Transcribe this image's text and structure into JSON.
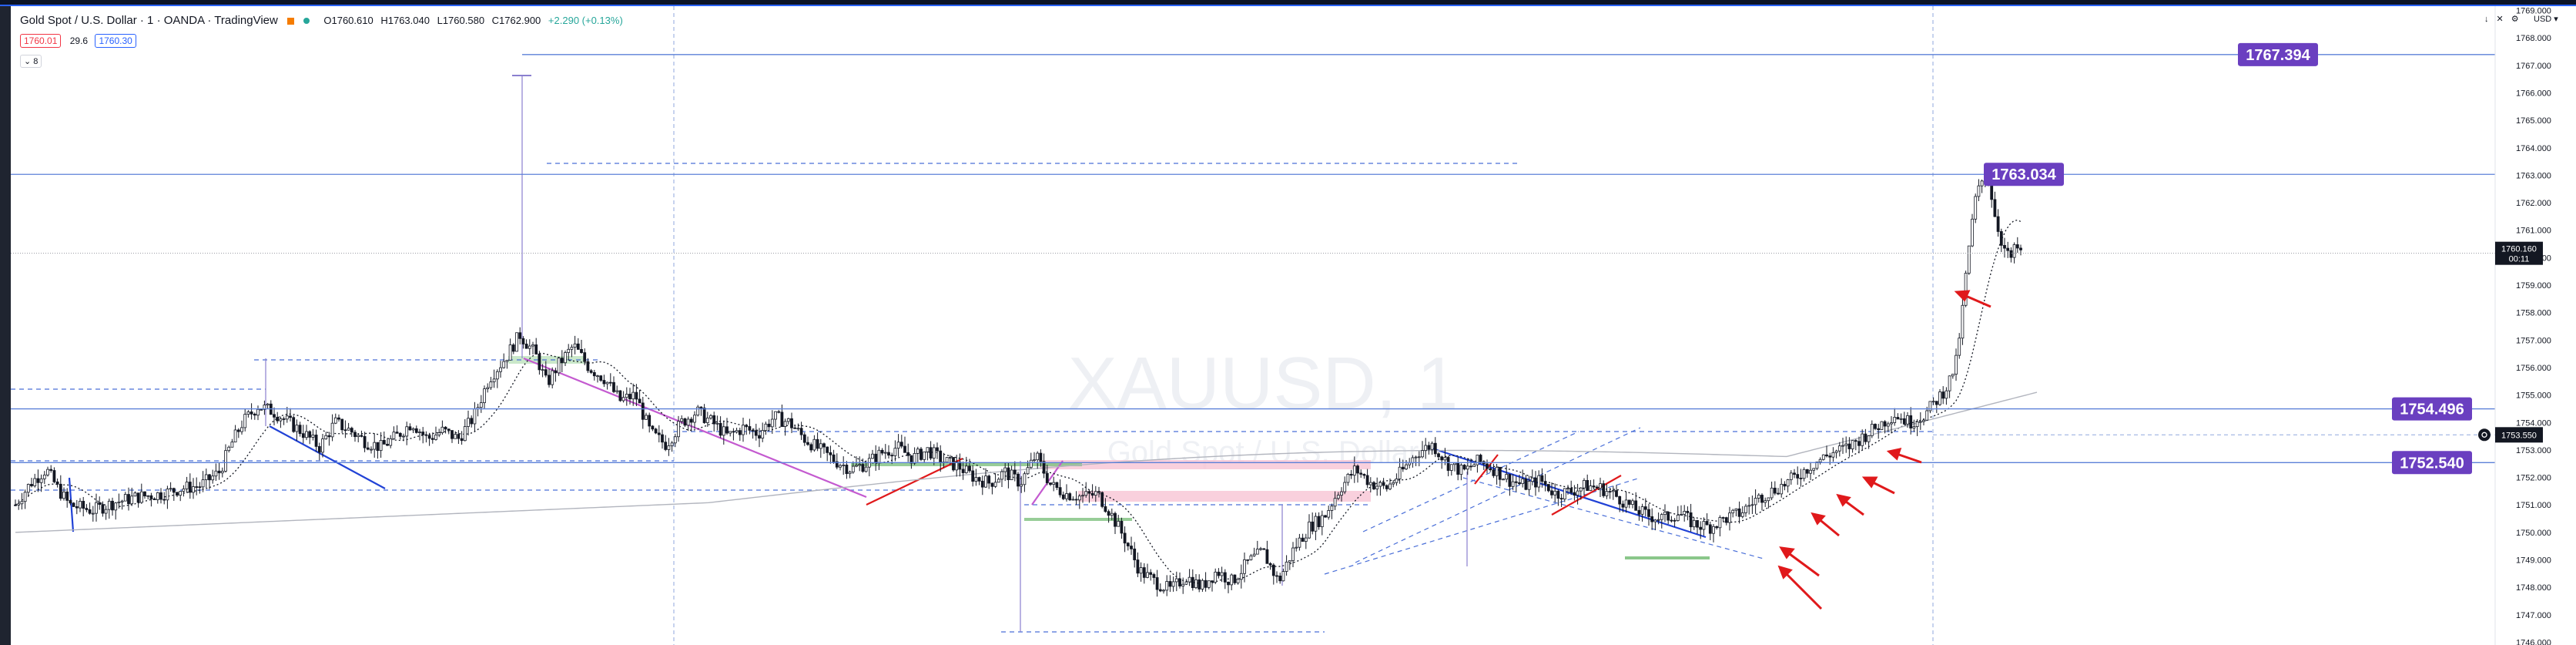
{
  "header": {
    "title": "Gold Spot / U.S. Dollar · 1 · OANDA · TradingView",
    "ohlc": {
      "open": "O1760.610",
      "high": "H1763.040",
      "low": "L1760.580",
      "close": "C1762.900",
      "change": "+2.290 (+0.13%)"
    },
    "sell_price": "1760.01",
    "spread": "29.6",
    "buy_price": "1760.30",
    "collapse_label": "8",
    "currency": "USD"
  },
  "watermark": {
    "symbol": "XAUUSD, 1",
    "name": "Gold Spot / U.S. Dollar"
  },
  "colors": {
    "bull": "#131722",
    "bear": "#131722",
    "hline": "#5b80d8",
    "label_bg": "#6a3fc0",
    "dashed": "#4a6fd8",
    "red_arrow": "#e0191b",
    "green_zone": "#a6d9a6",
    "pink_zone": "#f8c4d4"
  },
  "chart_data": {
    "type": "candlestick",
    "title": "",
    "xlabel": "",
    "ylabel": "",
    "ylim": [
      1746.0,
      1769.0
    ],
    "y_ticks": [
      1747,
      1748,
      1749,
      1750,
      1751,
      1752,
      1753,
      1754,
      1755,
      1756,
      1757,
      1758,
      1759,
      1760,
      1761,
      1762,
      1763,
      1764,
      1765,
      1766,
      1767,
      1768
    ],
    "y_tick_labels": [
      "1747.000",
      "1748.000",
      "1749.000",
      "1750.000",
      "1751.000",
      "1752.000",
      "1753.000",
      "1754.000",
      "1755.000",
      "1756.000",
      "1757.000",
      "1758.000",
      "1759.000",
      "1760.000",
      "1761.000",
      "1762.000",
      "1763.000",
      "1764.000",
      "1765.000",
      "1766.000",
      "1767.000",
      "1768.000"
    ],
    "bottom_tick_label": "1746.000",
    "top_tick_label": "1769.000",
    "current_price": {
      "price": 1760.16,
      "label": "1760.160",
      "countdown": "00:11"
    },
    "cursor_price": {
      "price": 1753.55,
      "label": "1753.550"
    },
    "horizontal_levels": [
      {
        "price": 1767.394,
        "label": "1767.394"
      },
      {
        "price": 1763.034,
        "label": "1763.034"
      },
      {
        "price": 1754.496,
        "label": "1754.496"
      },
      {
        "price": 1752.54,
        "label": "1752.540"
      }
    ],
    "close_path": [
      [
        0,
        1751.0
      ],
      [
        20,
        1751.8
      ],
      [
        40,
        1752.3
      ],
      [
        55,
        1751.6
      ],
      [
        70,
        1751.0
      ],
      [
        100,
        1750.8
      ],
      [
        130,
        1751.1
      ],
      [
        160,
        1751.3
      ],
      [
        190,
        1751.4
      ],
      [
        215,
        1751.6
      ],
      [
        240,
        1751.7
      ],
      [
        265,
        1752.2
      ],
      [
        280,
        1753.2
      ],
      [
        295,
        1754.0
      ],
      [
        315,
        1754.6
      ],
      [
        335,
        1754.4
      ],
      [
        355,
        1754.0
      ],
      [
        375,
        1753.6
      ],
      [
        395,
        1753.1
      ],
      [
        415,
        1754.0
      ],
      [
        435,
        1753.7
      ],
      [
        455,
        1753.3
      ],
      [
        475,
        1753.1
      ],
      [
        495,
        1753.5
      ],
      [
        515,
        1754.0
      ],
      [
        535,
        1753.4
      ],
      [
        555,
        1753.7
      ],
      [
        575,
        1753.4
      ],
      [
        595,
        1754.2
      ],
      [
        615,
        1755.6
      ],
      [
        635,
        1756.3
      ],
      [
        655,
        1757.2
      ],
      [
        675,
        1756.5
      ],
      [
        690,
        1755.4
      ],
      [
        705,
        1756.1
      ],
      [
        725,
        1756.8
      ],
      [
        745,
        1756.0
      ],
      [
        765,
        1755.6
      ],
      [
        785,
        1754.8
      ],
      [
        805,
        1755.0
      ],
      [
        825,
        1753.6
      ],
      [
        845,
        1753.2
      ],
      [
        865,
        1754.0
      ],
      [
        885,
        1754.4
      ],
      [
        905,
        1754.0
      ],
      [
        925,
        1753.5
      ],
      [
        945,
        1753.8
      ],
      [
        965,
        1753.6
      ],
      [
        985,
        1754.2
      ],
      [
        1005,
        1754.0
      ],
      [
        1025,
        1753.4
      ],
      [
        1045,
        1753.0
      ],
      [
        1065,
        1752.6
      ],
      [
        1085,
        1752.3
      ],
      [
        1105,
        1752.5
      ],
      [
        1125,
        1752.9
      ],
      [
        1145,
        1753.1
      ],
      [
        1165,
        1752.7
      ],
      [
        1185,
        1753.0
      ],
      [
        1205,
        1752.6
      ],
      [
        1225,
        1752.4
      ],
      [
        1245,
        1752.0
      ],
      [
        1265,
        1751.8
      ],
      [
        1285,
        1752.2
      ],
      [
        1305,
        1751.8
      ],
      [
        1325,
        1752.8
      ],
      [
        1345,
        1751.7
      ],
      [
        1365,
        1751.4
      ],
      [
        1385,
        1751.3
      ],
      [
        1405,
        1751.4
      ],
      [
        1420,
        1750.8
      ],
      [
        1440,
        1749.8
      ],
      [
        1460,
        1748.6
      ],
      [
        1480,
        1748.2
      ],
      [
        1500,
        1747.9
      ],
      [
        1520,
        1748.4
      ],
      [
        1540,
        1748.0
      ],
      [
        1560,
        1748.6
      ],
      [
        1580,
        1748.2
      ],
      [
        1600,
        1748.9
      ],
      [
        1620,
        1749.3
      ],
      [
        1640,
        1748.2
      ],
      [
        1660,
        1749.4
      ],
      [
        1680,
        1750.2
      ],
      [
        1700,
        1750.6
      ],
      [
        1720,
        1751.6
      ],
      [
        1740,
        1752.3
      ],
      [
        1760,
        1751.8
      ],
      [
        1780,
        1751.6
      ],
      [
        1800,
        1752.2
      ],
      [
        1820,
        1752.9
      ],
      [
        1840,
        1753.2
      ],
      [
        1860,
        1752.5
      ],
      [
        1880,
        1752.2
      ],
      [
        1900,
        1752.6
      ],
      [
        1920,
        1752.3
      ],
      [
        1940,
        1751.9
      ],
      [
        1960,
        1751.7
      ],
      [
        1980,
        1751.9
      ],
      [
        2000,
        1751.4
      ],
      [
        2020,
        1751.5
      ],
      [
        2040,
        1751.7
      ],
      [
        2060,
        1751.6
      ],
      [
        2080,
        1751.3
      ],
      [
        2100,
        1750.9
      ],
      [
        2120,
        1750.6
      ],
      [
        2140,
        1750.5
      ],
      [
        2160,
        1750.7
      ],
      [
        2180,
        1750.3
      ],
      [
        2200,
        1750.2
      ],
      [
        2220,
        1750.5
      ],
      [
        2240,
        1750.7
      ],
      [
        2260,
        1751.2
      ],
      [
        2280,
        1751.5
      ],
      [
        2300,
        1751.8
      ],
      [
        2320,
        1752.2
      ],
      [
        2340,
        1752.6
      ],
      [
        2360,
        1752.9
      ],
      [
        2380,
        1753.1
      ],
      [
        2400,
        1753.5
      ],
      [
        2420,
        1753.9
      ],
      [
        2440,
        1754.3
      ],
      [
        2460,
        1754.0
      ],
      [
        2480,
        1754.3
      ],
      [
        2500,
        1755.0
      ],
      [
        2510,
        1755.4
      ],
      [
        2520,
        1756.2
      ],
      [
        2528,
        1758.0
      ],
      [
        2535,
        1760.0
      ],
      [
        2545,
        1762.1
      ],
      [
        2555,
        1762.9
      ],
      [
        2562,
        1763.0
      ],
      [
        2570,
        1761.6
      ],
      [
        2580,
        1760.5
      ],
      [
        2590,
        1759.9
      ],
      [
        2598,
        1760.4
      ],
      [
        2605,
        1760.16
      ]
    ]
  }
}
